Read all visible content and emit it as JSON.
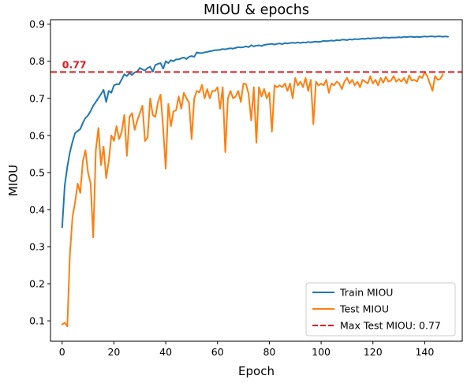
{
  "chart_data": {
    "type": "line",
    "title": "MIOU & epochs",
    "xlabel": "Epoch",
    "ylabel": "MIOU",
    "xlim": [
      -4.5,
      154.5
    ],
    "ylim": [
      0.045,
      0.912
    ],
    "xticks": [
      0,
      20,
      40,
      60,
      80,
      100,
      120,
      140
    ],
    "yticks": [
      0.1,
      0.2,
      0.3,
      0.4,
      0.5,
      0.6,
      0.7,
      0.8,
      0.9
    ],
    "grid": false,
    "legend_position": "lower-right",
    "series": [
      {
        "name": "Train MIOU",
        "color": "#1f77b4",
        "values": [
          0.352,
          0.465,
          0.515,
          0.555,
          0.583,
          0.606,
          0.612,
          0.617,
          0.634,
          0.647,
          0.654,
          0.666,
          0.68,
          0.69,
          0.701,
          0.711,
          0.723,
          0.69,
          0.72,
          0.715,
          0.735,
          0.738,
          0.738,
          0.751,
          0.765,
          0.76,
          0.768,
          0.763,
          0.77,
          0.772,
          0.782,
          0.778,
          0.775,
          0.782,
          0.785,
          0.772,
          0.79,
          0.793,
          0.795,
          0.78,
          0.8,
          0.795,
          0.803,
          0.8,
          0.805,
          0.805,
          0.808,
          0.81,
          0.806,
          0.812,
          0.814,
          0.812,
          0.824,
          0.822,
          0.822,
          0.824,
          0.825,
          0.827,
          0.828,
          0.83,
          0.83,
          0.831,
          0.833,
          0.832,
          0.834,
          0.835,
          0.834,
          0.836,
          0.838,
          0.837,
          0.838,
          0.84,
          0.838,
          0.843,
          0.84,
          0.842,
          0.843,
          0.841,
          0.844,
          0.845,
          0.846,
          0.847,
          0.845,
          0.847,
          0.848,
          0.846,
          0.849,
          0.848,
          0.849,
          0.85,
          0.849,
          0.851,
          0.849,
          0.851,
          0.85,
          0.852,
          0.851,
          0.852,
          0.853,
          0.852,
          0.853,
          0.855,
          0.854,
          0.855,
          0.856,
          0.855,
          0.857,
          0.856,
          0.858,
          0.858,
          0.857,
          0.859,
          0.858,
          0.86,
          0.859,
          0.86,
          0.861,
          0.86,
          0.862,
          0.861,
          0.862,
          0.862,
          0.863,
          0.862,
          0.864,
          0.864,
          0.863,
          0.864,
          0.864,
          0.864,
          0.865,
          0.864,
          0.866,
          0.865,
          0.866,
          0.866,
          0.865,
          0.866,
          0.865,
          0.866,
          0.867,
          0.866,
          0.867,
          0.867,
          0.866,
          0.867,
          0.867,
          0.866,
          0.867,
          0.866
        ]
      },
      {
        "name": "Test MIOU",
        "color": "#ff7f0e",
        "values": [
          0.09,
          0.095,
          0.085,
          0.28,
          0.38,
          0.42,
          0.47,
          0.445,
          0.53,
          0.56,
          0.5,
          0.47,
          0.325,
          0.56,
          0.62,
          0.52,
          0.57,
          0.485,
          0.53,
          0.6,
          0.585,
          0.625,
          0.59,
          0.61,
          0.655,
          0.545,
          0.65,
          0.66,
          0.615,
          0.64,
          0.66,
          0.68,
          0.585,
          0.595,
          0.7,
          0.655,
          0.65,
          0.69,
          0.71,
          0.62,
          0.51,
          0.685,
          0.625,
          0.665,
          0.668,
          0.705,
          0.672,
          0.715,
          0.7,
          0.688,
          0.59,
          0.7,
          0.72,
          0.716,
          0.736,
          0.7,
          0.725,
          0.7,
          0.72,
          0.72,
          0.73,
          0.672,
          0.73,
          0.555,
          0.7,
          0.72,
          0.7,
          0.705,
          0.72,
          0.69,
          0.74,
          0.738,
          0.712,
          0.64,
          0.73,
          0.58,
          0.73,
          0.705,
          0.725,
          0.7,
          0.715,
          0.61,
          0.735,
          0.73,
          0.735,
          0.73,
          0.74,
          0.72,
          0.74,
          0.7,
          0.755,
          0.735,
          0.745,
          0.73,
          0.755,
          0.72,
          0.75,
          0.63,
          0.745,
          0.735,
          0.74,
          0.735,
          0.75,
          0.715,
          0.74,
          0.735,
          0.745,
          0.74,
          0.725,
          0.745,
          0.755,
          0.74,
          0.75,
          0.735,
          0.745,
          0.73,
          0.75,
          0.745,
          0.74,
          0.76,
          0.74,
          0.75,
          0.735,
          0.755,
          0.742,
          0.758,
          0.745,
          0.748,
          0.76,
          0.745,
          0.752,
          0.745,
          0.755,
          0.74,
          0.762,
          0.748,
          0.75,
          0.745,
          0.76,
          0.755,
          0.77,
          0.76,
          0.74,
          0.72,
          0.76,
          0.75,
          0.752,
          0.765
        ]
      }
    ],
    "hlines": [
      {
        "name": "Max Test MIOU: 0.77",
        "y": 0.771,
        "color": "#e41a1c",
        "style": "dashed",
        "label_text": "0.77"
      }
    ]
  }
}
